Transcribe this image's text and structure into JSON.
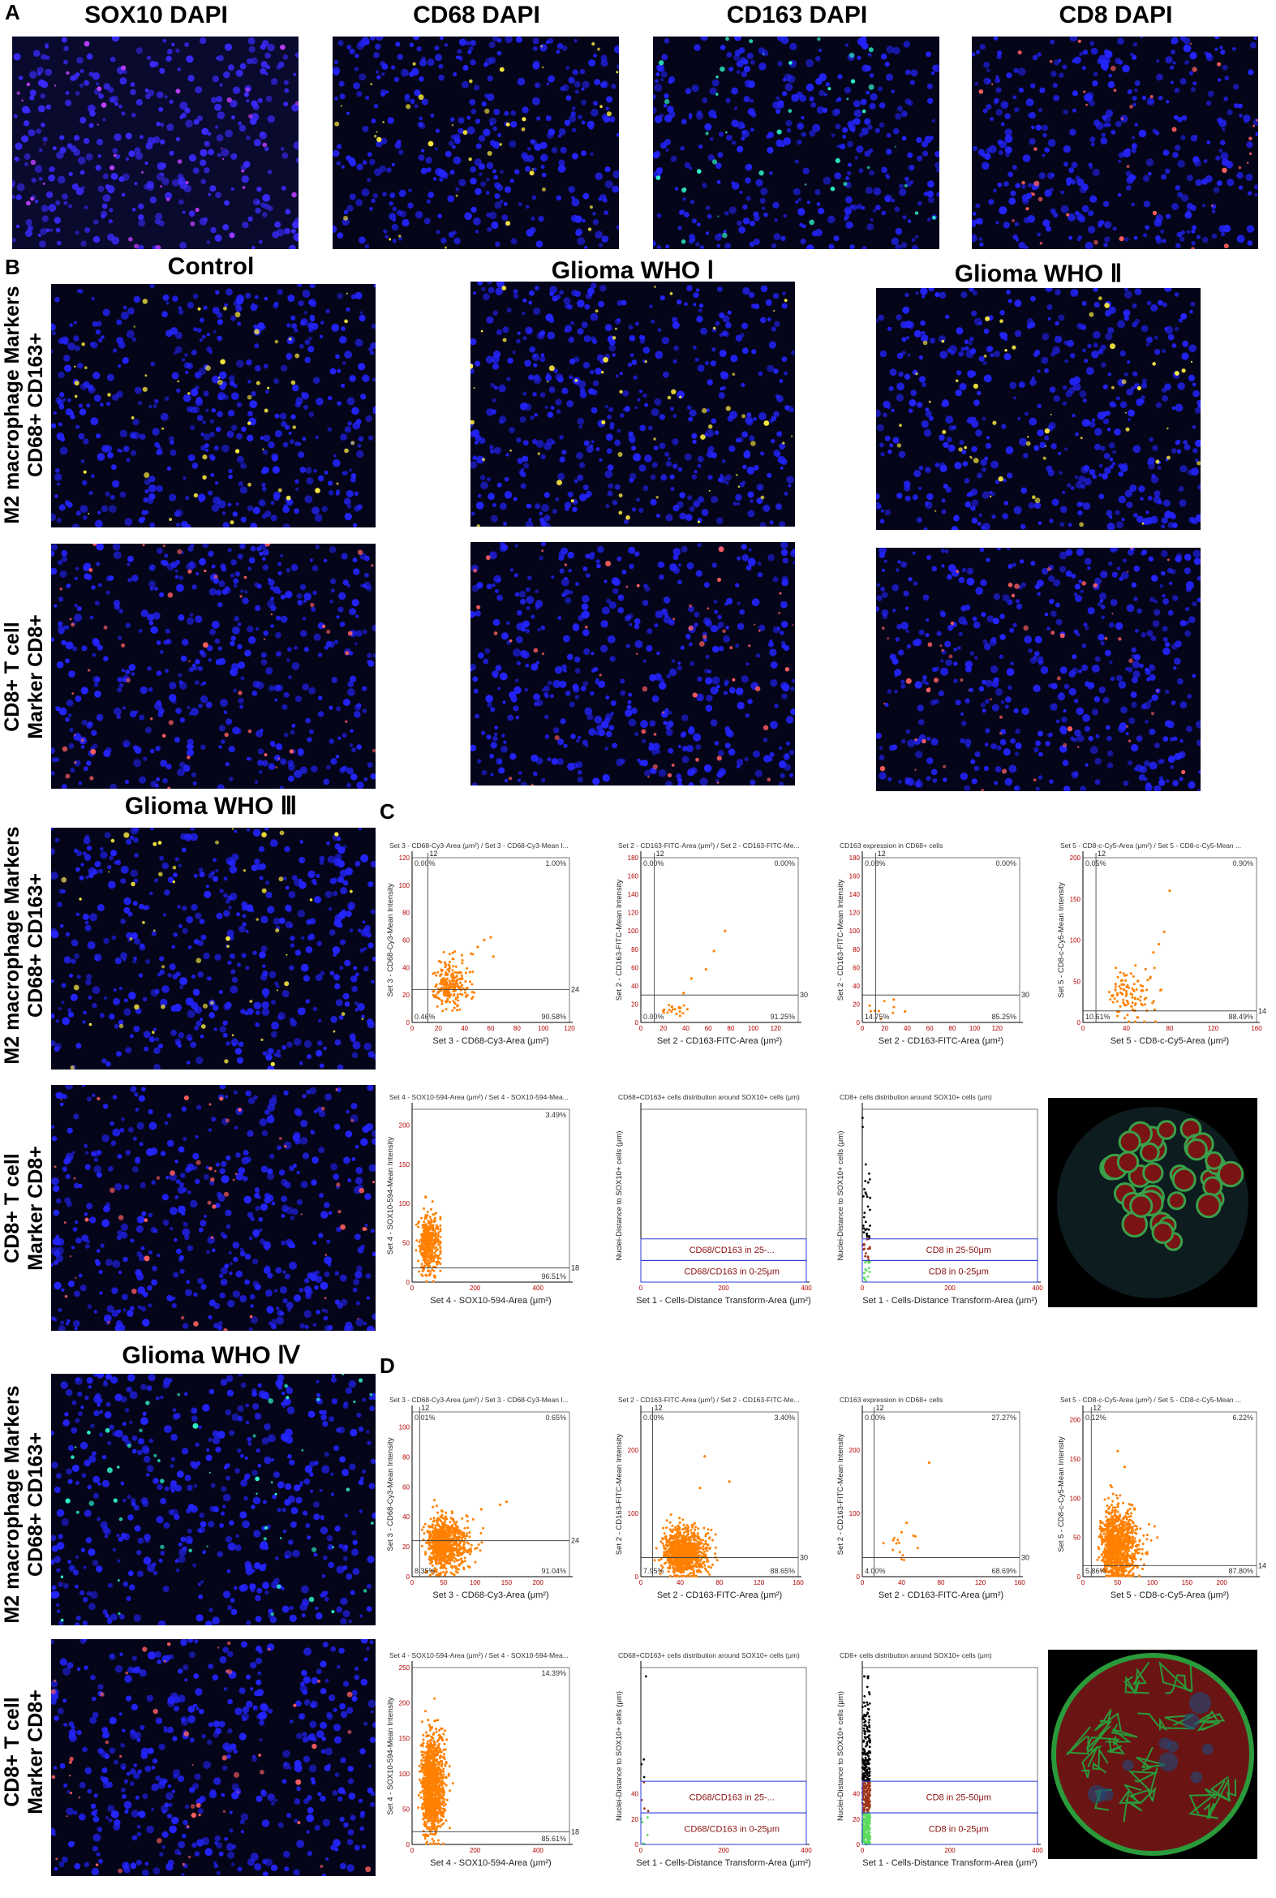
{
  "panel_letters": {
    "a": "A",
    "b": "B",
    "c": "C",
    "d": "D"
  },
  "panelA_titles": [
    "SOX10 DAPI",
    "CD68 DAPI",
    "CD163 DAPI",
    "CD8 DAPI"
  ],
  "panelB_titles": {
    "control": "Control",
    "who1": "Glioma  WHO Ⅰ",
    "who2": "Glioma  WHO Ⅱ",
    "who3": "Glioma  WHO Ⅲ",
    "who4": "Glioma  WHO Ⅳ"
  },
  "row_labels": {
    "m2_line1": "M2 macrophage Markers",
    "m2_line2": "CD68+ CD163+",
    "cd8_line1": "CD8+ T cell",
    "cd8_line2": "Marker CD8+"
  },
  "micro_images": [
    {
      "name": "sox10-dapi",
      "bg": "#0a0a2e",
      "dots": [
        "#3a2bff",
        "#c040ff"
      ]
    },
    {
      "name": "cd68-dapi",
      "bg": "#05051a",
      "dots": [
        "#2424ff",
        "#ffee40"
      ]
    },
    {
      "name": "cd163-dapi",
      "bg": "#05051a",
      "dots": [
        "#2424ff",
        "#30ffd0"
      ]
    },
    {
      "name": "cd8-dapi",
      "bg": "#05051a",
      "dots": [
        "#2424ff",
        "#ff6060"
      ]
    }
  ],
  "chart_data": [
    {
      "id": "C1",
      "type": "scatter",
      "title": "Set 3 - CD68-Cy3-Area (μm²) / Set 3 - CD68-Cy3-Mean I...",
      "xlabel": "Set 3 - CD68-Cy3-Area (μm²)",
      "ylabel": "Set 3 - CD68-Cy3-Mean Intensity",
      "xlim": [
        0,
        120
      ],
      "ylim": [
        0,
        120
      ],
      "xticks": [
        0,
        20,
        40,
        60,
        80,
        100,
        120
      ],
      "yticks": [
        0,
        20,
        40,
        60,
        80,
        100,
        120
      ],
      "gate_x": 12,
      "gate_y": 24,
      "gate_x_label": "12",
      "gate_y_label": "24",
      "quadrants": [
        "0.00%",
        "1.00%",
        "0.46%",
        "90.58%"
      ],
      "point_color": "#ff8000",
      "point_count": 260,
      "cluster": {
        "xmean": 24,
        "xsd": 10,
        "ymean": 24,
        "ysd": 12,
        "xmax": 70,
        "ymax": 65
      },
      "outliers": [
        [
          55,
          60
        ],
        [
          60,
          62
        ],
        [
          50,
          55
        ],
        [
          45,
          50
        ],
        [
          62,
          48
        ]
      ]
    },
    {
      "id": "C2",
      "type": "scatter",
      "title": "Set 2 - CD163-FITC-Area (μm²) / Set 2 - CD163-FITC-Me...",
      "xlabel": "Set 2 - CD163-FITC-Area (μm²)",
      "ylabel": "Set 2 - CD163-FITC-Mean Intensity",
      "xlim": [
        0,
        140
      ],
      "ylim": [
        0,
        180
      ],
      "xticks": [
        0,
        20,
        40,
        60,
        80,
        100,
        120
      ],
      "yticks": [
        0,
        20,
        40,
        60,
        80,
        100,
        120,
        140,
        160,
        180
      ],
      "gate_x": 12,
      "gate_y": 30,
      "gate_x_label": "12",
      "gate_y_label": "30",
      "quadrants": [
        "0.00%",
        "0.00%",
        "0.00%",
        "91.25%"
      ],
      "point_color": "#ff8000",
      "point_count": 20,
      "cluster": {
        "xmean": 25,
        "xsd": 10,
        "ymean": 12,
        "ysd": 8,
        "xmax": 50,
        "ymax": 40
      },
      "outliers": [
        [
          75,
          100
        ],
        [
          65,
          78
        ],
        [
          45,
          48
        ],
        [
          38,
          32
        ],
        [
          58,
          58
        ]
      ]
    },
    {
      "id": "C3",
      "type": "scatter",
      "title": "CD163 expression in CD68+ cells",
      "xlabel": "Set 2 - CD163-FITC-Area (μm²)",
      "ylabel": "Set 2 - CD163-FITC-Mean Intensity",
      "xlim": [
        0,
        140
      ],
      "ylim": [
        0,
        180
      ],
      "xticks": [
        0,
        20,
        40,
        60,
        80,
        100,
        120
      ],
      "yticks": [
        0,
        20,
        40,
        60,
        80,
        100,
        120,
        140,
        160,
        180
      ],
      "gate_x": 12,
      "gate_y": 30,
      "gate_x_label": "12",
      "gate_y_label": "30",
      "quadrants": [
        "0.08%",
        "0.00%",
        "14.75%",
        "85.25%"
      ],
      "point_color": "#ff8000",
      "point_count": 8,
      "cluster": {
        "xmean": 12,
        "xsd": 8,
        "ymean": 10,
        "ysd": 6,
        "xmax": 40,
        "ymax": 30
      },
      "outliers": [
        [
          28,
          25
        ],
        [
          38,
          12
        ]
      ]
    },
    {
      "id": "C4",
      "type": "scatter",
      "title": "Set 5 - CD8-c-Cy5-Area (μm²) / Set 5 - CD8-c-Cy5-Mean ...",
      "xlabel": "Set 5 - CD8-c-Cy5-Area (μm²)",
      "ylabel": "Set 5 - CD8-c-Cy5-Mean Intensity",
      "xlim": [
        0,
        160
      ],
      "ylim": [
        0,
        200
      ],
      "xticks": [
        0,
        40,
        80,
        120,
        160
      ],
      "yticks": [
        0,
        50,
        100,
        150,
        200
      ],
      "gate_x": 12,
      "gate_y": 14,
      "gate_x_label": "12",
      "gate_y_label": "14",
      "quadrants": [
        "0.05%",
        "0.90%",
        "10.61%",
        "88.49%"
      ],
      "point_color": "#ff8000",
      "point_count": 110,
      "cluster": {
        "xmean": 35,
        "xsd": 15,
        "ymean": 25,
        "ysd": 22,
        "xmax": 80,
        "ymax": 110
      },
      "outliers": [
        [
          80,
          160
        ],
        [
          75,
          110
        ],
        [
          70,
          95
        ],
        [
          65,
          85
        ]
      ]
    },
    {
      "id": "C5",
      "type": "scatter",
      "title": "Set 4 - SOX10-594-Area (μm²) / Set 4 - SOX10-594-Mea...",
      "xlabel": "Set 4 - SOX10-594-Area (μm²)",
      "ylabel": "Set 4 - SOX10-594-Mean Intensity",
      "xlim": [
        0,
        500
      ],
      "ylim": [
        0,
        220
      ],
      "xticks": [
        0,
        200,
        400
      ],
      "yticks": [
        0,
        50,
        100,
        150,
        200
      ],
      "gate_y": 18,
      "gate_y_label": "18",
      "quadrants": [
        "",
        "3.49%",
        "",
        "96.51%"
      ],
      "point_color": "#ff8000",
      "point_count": 420,
      "cluster": {
        "xmean": 40,
        "xsd": 25,
        "ymean": 40,
        "ysd": 25,
        "xmax": 90,
        "ymax": 150
      },
      "outliers": []
    },
    {
      "id": "C6",
      "type": "gate_plot",
      "title": "CD68+CD163+ cells distribution around SOX10+ cells (μm)",
      "xlabel": "Set 1 - Cells-Distance Transform-Area (μm²)",
      "ylabel": "Nuclei-Distance to SOX10+ cells (μm)",
      "xlim": [
        0,
        400
      ],
      "ylim": [
        0,
        200
      ],
      "xticks": [
        0,
        200,
        400
      ],
      "gates": [
        {
          "label": "CD68/CD163 in 25-...",
          "y0": 25,
          "y1": 50
        },
        {
          "label": "CD68/CD163 in 0-25μm",
          "y0": 0,
          "y1": 25
        }
      ],
      "points": []
    },
    {
      "id": "C7",
      "type": "gate_plot",
      "title": "CD8+ cells distribution around SOX10+ cells (μm)",
      "xlabel": "Set 1 - Cells-Distance Transform-Area (μm²)",
      "ylabel": "Nuclei-Distance to SOX10+ cells (μm)",
      "xlim": [
        0,
        400
      ],
      "ylim": [
        0,
        200
      ],
      "xticks": [
        0,
        200,
        400
      ],
      "gates": [
        {
          "label": "CD8 in 25-50μm",
          "y0": 25,
          "y1": 50
        },
        {
          "label": "CD8 in 0-25μm",
          "y0": 0,
          "y1": 25
        }
      ],
      "point_count": 60
    },
    {
      "id": "D1",
      "type": "scatter",
      "title": "Set 3 - CD68-Cy3-Area (μm²) / Set 3 - CD68-Cy3-Mean I...",
      "xlabel": "Set 3 - CD68-Cy3-Area (μm²)",
      "ylabel": "Set 3 - CD68-Cy3-Mean Intensity",
      "xlim": [
        0,
        250
      ],
      "ylim": [
        0,
        110
      ],
      "xticks": [
        0,
        50,
        100,
        150,
        200
      ],
      "yticks": [
        0,
        20,
        40,
        60,
        80,
        100
      ],
      "gate_x": 12,
      "gate_y": 24,
      "gate_x_label": "12",
      "gate_y_label": "24",
      "quadrants": [
        "0.01%",
        "0.65%",
        "8.35%",
        "91.04%"
      ],
      "point_color": "#ff8000",
      "point_count": 900,
      "cluster": {
        "xmean": 40,
        "xsd": 22,
        "ymean": 18,
        "ysd": 12,
        "xmax": 150,
        "ymax": 70
      },
      "outliers": [
        [
          150,
          50
        ],
        [
          140,
          48
        ],
        [
          110,
          45
        ]
      ]
    },
    {
      "id": "D2",
      "type": "scatter",
      "title": "Set 2 - CD163-FITC-Area (μm²) / Set 2 - CD163-FITC-Me...",
      "xlabel": "Set 2 - CD163-FITC-Area (μm²)",
      "ylabel": "Set 2 - CD163-FITC-Mean Intensity",
      "xlim": [
        0,
        160
      ],
      "ylim": [
        0,
        260
      ],
      "xticks": [
        0,
        40,
        80,
        120,
        160
      ],
      "yticks": [
        0,
        100,
        200
      ],
      "gate_x": 12,
      "gate_y": 30,
      "gate_x_label": "12",
      "gate_y_label": "30",
      "quadrants": [
        "0.00%",
        "3.40%",
        "7.95%",
        "88.65%"
      ],
      "point_color": "#ff8000",
      "point_count": 1000,
      "cluster": {
        "xmean": 35,
        "xsd": 15,
        "ymean": 30,
        "ysd": 25,
        "xmax": 100,
        "ymax": 170
      },
      "outliers": [
        [
          65,
          190
        ],
        [
          90,
          150
        ],
        [
          60,
          140
        ]
      ]
    },
    {
      "id": "D3",
      "type": "scatter",
      "title": "CD163 expression in CD68+ cells",
      "xlabel": "Set 2 - CD163-FITC-Area (μm²)",
      "ylabel": "Set 2 - CD163-FITC-Mean Intensity",
      "xlim": [
        0,
        160
      ],
      "ylim": [
        0,
        260
      ],
      "xticks": [
        0,
        40,
        80,
        120,
        160
      ],
      "yticks": [
        0,
        100,
        200
      ],
      "gate_x": 12,
      "gate_y": 30,
      "gate_x_label": "12",
      "gate_y_label": "30",
      "quadrants": [
        "0.00%",
        "27.27%",
        "4.00%",
        "68.69%"
      ],
      "point_color": "#ff8000",
      "point_count": 14,
      "cluster": {
        "xmean": 30,
        "xsd": 12,
        "ymean": 40,
        "ysd": 20,
        "xmax": 70,
        "ymax": 80
      },
      "outliers": [
        [
          68,
          180
        ],
        [
          45,
          85
        ],
        [
          40,
          70
        ]
      ]
    },
    {
      "id": "D4",
      "type": "scatter",
      "title": "Set 5 - CD8-c-Cy5-Area (μm²) / Set 5 - CD8-c-Cy5-Mean ...",
      "xlabel": "Set 5 - CD8-c-Cy5-Area (μm²)",
      "ylabel": "Set 5 - CD8-c-Cy5-Mean Intensity",
      "xlim": [
        0,
        250
      ],
      "ylim": [
        0,
        210
      ],
      "xticks": [
        0,
        50,
        100,
        150,
        200
      ],
      "yticks": [
        0,
        50,
        100,
        150,
        200
      ],
      "gate_x": 12,
      "gate_y": 14,
      "gate_x_label": "12",
      "gate_y_label": "14",
      "quadrants": [
        "0.12%",
        "6.22%",
        "5.86%",
        "87.80%"
      ],
      "point_color": "#ff8000",
      "point_count": 1100,
      "cluster": {
        "xmean": 40,
        "xsd": 18,
        "ymean": 30,
        "ysd": 30,
        "xmax": 110,
        "ymax": 130
      },
      "outliers": [
        [
          60,
          140
        ],
        [
          50,
          160
        ]
      ]
    },
    {
      "id": "D5",
      "type": "scatter",
      "title": "Set 4 - SOX10-594-Area (μm²) / Set 4 - SOX10-594-Mea...",
      "xlabel": "Set 4 - SOX10-594-Area (μm²)",
      "ylabel": "Set 4 - SOX10-594-Mean Intensity",
      "xlim": [
        0,
        500
      ],
      "ylim": [
        0,
        250
      ],
      "xticks": [
        0,
        200,
        400
      ],
      "yticks": [
        0,
        50,
        100,
        150,
        200,
        250
      ],
      "gate_y": 18,
      "gate_y_label": "18",
      "quadrants": [
        "",
        "14.39%",
        "",
        "85.61%"
      ],
      "point_color": "#ff8000",
      "point_count": 1300,
      "cluster": {
        "xmean": 50,
        "xsd": 25,
        "ymean": 70,
        "ysd": 45,
        "xmax": 130,
        "ymax": 210
      },
      "outliers": []
    },
    {
      "id": "D6",
      "type": "gate_plot",
      "title": "CD68+CD163+ cells distribution around SOX10+ cells (μm)",
      "xlabel": "Set 1 - Cells-Distance Transform-Area (μm²)",
      "ylabel": "Nuclei-Distance to SOX10+ cells (μm)",
      "xlim": [
        0,
        400
      ],
      "ylim": [
        0,
        140
      ],
      "xticks": [
        0,
        200,
        400
      ],
      "yticks": [
        0,
        20,
        40
      ],
      "gates": [
        {
          "label": "CD68/CD163 in 25-...",
          "y0": 25,
          "y1": 50
        },
        {
          "label": "CD68/CD163 in 0-25μm",
          "y0": 0,
          "y1": 25
        }
      ],
      "point_count": 14
    },
    {
      "id": "D7",
      "type": "gate_plot",
      "title": "CD8+ cells distribution around SOX10+ cells (μm)",
      "xlabel": "Set 1 - Cells-Distance Transform-Area (μm²)",
      "ylabel": "Nuclei-Distance to SOX10+ cells (μm)",
      "xlim": [
        0,
        400
      ],
      "ylim": [
        0,
        140
      ],
      "xticks": [
        0,
        200,
        400
      ],
      "yticks": [
        0,
        20,
        40
      ],
      "gates": [
        {
          "label": "CD8 in 25-50μm",
          "y0": 25,
          "y1": 50
        },
        {
          "label": "CD8 in 0-25μm",
          "y0": 0,
          "y1": 25
        }
      ],
      "point_count": 500
    }
  ]
}
